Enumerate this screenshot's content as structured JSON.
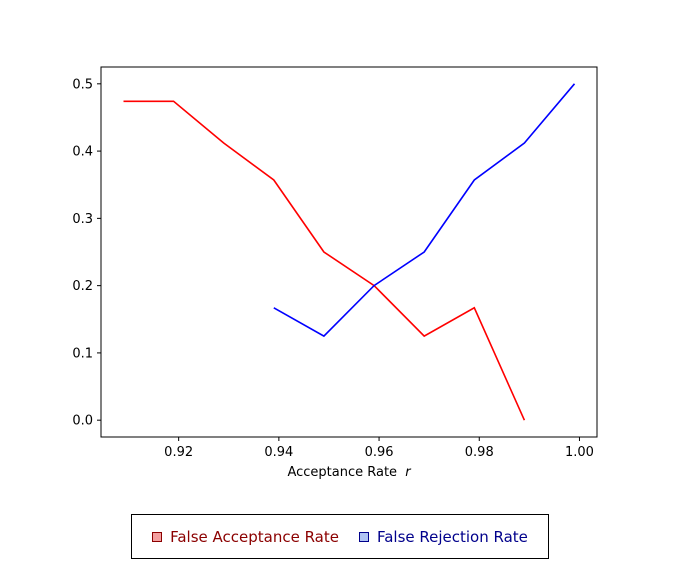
{
  "chart_data": {
    "type": "line",
    "xlabel": "Acceptance Rate",
    "xlabel_var": "r",
    "xlim": [
      0.9045,
      1.0035
    ],
    "ylim": [
      -0.025,
      0.525
    ],
    "xticks": [
      0.92,
      0.94,
      0.96,
      0.98,
      1.0
    ],
    "xtick_labels": [
      "0.92",
      "0.94",
      "0.96",
      "0.98",
      "1.00"
    ],
    "yticks": [
      0.0,
      0.1,
      0.2,
      0.3,
      0.4,
      0.5
    ],
    "ytick_labels": [
      "0.0",
      "0.1",
      "0.2",
      "0.3",
      "0.4",
      "0.5"
    ],
    "grid": false,
    "legend_position": "bottom-center",
    "series": [
      {
        "name": "False Acceptance Rate",
        "color": "#ff0000",
        "swatch_fill": "#f4a0a0",
        "text_color": "#8b0000",
        "x": [
          0.909,
          0.919,
          0.929,
          0.939,
          0.949,
          0.959,
          0.969,
          0.979,
          0.989
        ],
        "y": [
          0.474,
          0.474,
          0.412,
          0.357,
          0.25,
          0.2,
          0.125,
          0.167,
          0.0
        ]
      },
      {
        "name": "False Rejection Rate",
        "color": "#0000ff",
        "swatch_fill": "#b0c4f4",
        "text_color": "#00008b",
        "x": [
          0.939,
          0.949,
          0.959,
          0.969,
          0.979,
          0.989,
          0.999
        ],
        "y": [
          0.167,
          0.125,
          0.2,
          0.25,
          0.357,
          0.412,
          0.5
        ]
      }
    ]
  }
}
